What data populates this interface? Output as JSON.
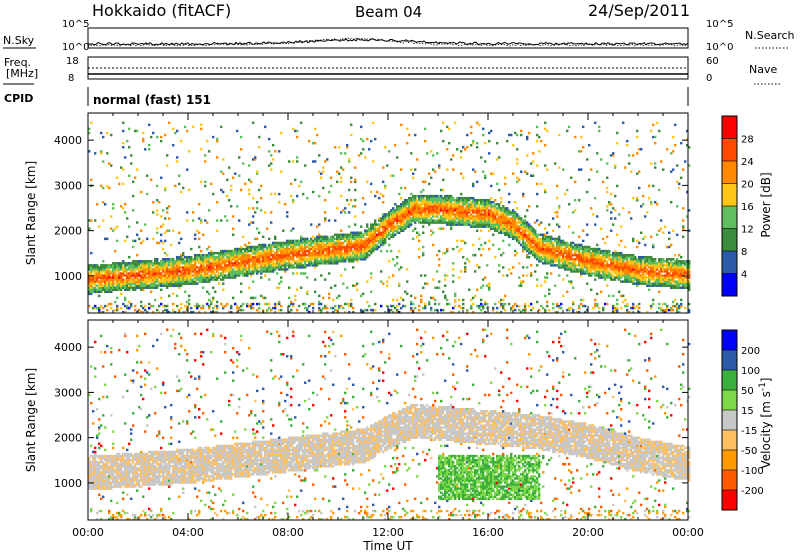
{
  "header": {
    "station": "Hokkaido (fitACF)",
    "beam": "Beam 04",
    "date": "24/Sep/2011"
  },
  "aux_panels": {
    "nsky_label": "N.Sky",
    "nsearch_label": "N.Search",
    "freq_label_1": "Freq.",
    "freq_label_2": "[MHz]",
    "nave_label": "Nave",
    "cpid_label": "CPID",
    "cpid_value": "normal (fast) 151",
    "noise_ticks_left": [
      "10^5",
      "10^0"
    ],
    "noise_ticks_right": [
      "10^5",
      "10^0"
    ],
    "freq_ticks_left": [
      "18",
      "8"
    ],
    "nave_ticks_right": [
      "60",
      "0"
    ]
  },
  "colors": {
    "power_scale": [
      "#0000ff",
      "#2b5aa8",
      "#3c8a3c",
      "#5fbf5f",
      "#ffc61a",
      "#ff8a00",
      "#ff4a00",
      "#ff0000"
    ],
    "velocity_scale": [
      "#ff0000",
      "#ff5a00",
      "#ff9a00",
      "#ffc061",
      "#c8c8c8",
      "#7fd84a",
      "#3cb03c",
      "#2b5aa8",
      "#0000ff"
    ]
  },
  "chart_data": [
    {
      "type": "heatmap",
      "panel": "power",
      "xlabel": "Time UT",
      "ylabel": "Slant Range [km]",
      "xlim": [
        0,
        24
      ],
      "ylim": [
        180,
        4600
      ],
      "x_tick_labels": [
        "00:00",
        "04:00",
        "08:00",
        "12:00",
        "16:00",
        "20:00",
        "00:00"
      ],
      "y_ticks": [
        1000,
        2000,
        3000,
        4000
      ],
      "colorbar_label": "Power [dB]",
      "colorbar_ticks": [
        "4",
        "8",
        "12",
        "16",
        "20",
        "24",
        "28"
      ],
      "features": [
        {
          "name": "main band",
          "t": [
            0,
            4,
            8,
            11,
            12,
            13,
            14,
            15,
            16,
            17,
            18,
            20,
            22,
            24
          ],
          "range_km": [
            900,
            1100,
            1450,
            1650,
            2100,
            2450,
            2450,
            2400,
            2350,
            2100,
            1600,
            1300,
            1100,
            1000
          ],
          "power_db": 28
        }
      ]
    },
    {
      "type": "heatmap",
      "panel": "velocity",
      "xlabel": "Time UT",
      "ylabel": "Slant Range [km]",
      "xlim": [
        0,
        24
      ],
      "ylim": [
        180,
        4600
      ],
      "x_tick_labels": [
        "00:00",
        "04:00",
        "08:00",
        "12:00",
        "16:00",
        "20:00",
        "00:00"
      ],
      "y_ticks": [
        1000,
        2000,
        3000,
        4000
      ],
      "colorbar_label": "Velocity [m s^-1]",
      "colorbar_ticks": [
        "200",
        "100",
        "50",
        "15",
        "-15",
        "-50",
        "-100",
        "-200"
      ],
      "features": [
        {
          "name": "ground scatter band",
          "t": [
            0,
            4,
            8,
            11,
            12,
            13,
            14,
            16,
            18,
            20,
            22,
            24
          ],
          "range_km": [
            1200,
            1350,
            1600,
            1800,
            2100,
            2350,
            2300,
            2200,
            2100,
            1900,
            1600,
            1400
          ],
          "velocity_ms": 0
        },
        {
          "name": "positive velocity region",
          "t": [
            14,
            18
          ],
          "range_km": [
            600,
            1600
          ],
          "velocity_ms": 50
        }
      ]
    }
  ]
}
